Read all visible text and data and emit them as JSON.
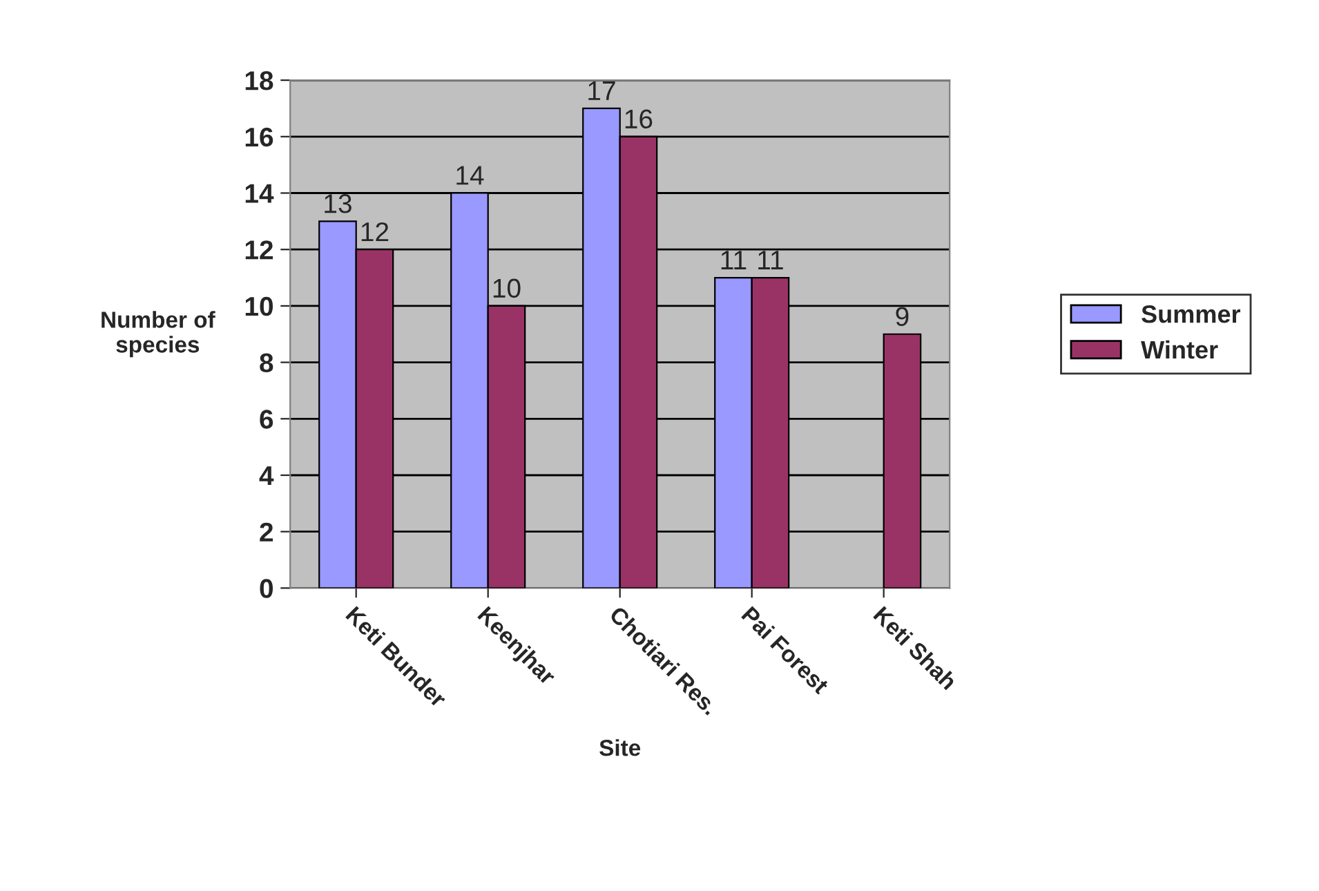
{
  "chart_data": {
    "type": "bar",
    "xlabel": "Site",
    "ylabel": "Number of\nspecies",
    "categories": [
      "Keti Bunder",
      "Keenjhar",
      "Chotiari Res.",
      "Pai Forest",
      "Keti Shah"
    ],
    "series": [
      {
        "name": "Summer",
        "color": "#9999ff",
        "values": [
          13,
          14,
          17,
          11,
          null
        ]
      },
      {
        "name": "Winter",
        "color": "#993366",
        "values": [
          12,
          10,
          16,
          11,
          9
        ]
      }
    ],
    "ylim": [
      0,
      18
    ],
    "yticks": [
      0,
      2,
      4,
      6,
      8,
      10,
      12,
      14,
      16,
      18
    ],
    "grid": "y",
    "legend": "right",
    "data_labels": true
  }
}
